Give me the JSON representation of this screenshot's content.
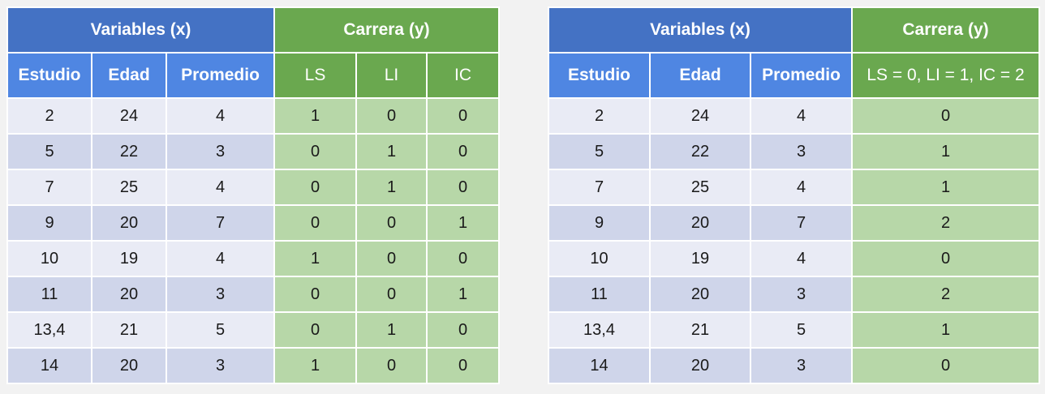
{
  "left_table": {
    "group_x": "Variables (x)",
    "group_y": "Carrera (y)",
    "columns_x": [
      "Estudio",
      "Edad",
      "Promedio"
    ],
    "columns_y": [
      "LS",
      "LI",
      "IC"
    ],
    "rows": [
      [
        "2",
        "24",
        "4",
        "1",
        "0",
        "0"
      ],
      [
        "5",
        "22",
        "3",
        "0",
        "1",
        "0"
      ],
      [
        "7",
        "25",
        "4",
        "0",
        "1",
        "0"
      ],
      [
        "9",
        "20",
        "7",
        "0",
        "0",
        "1"
      ],
      [
        "10",
        "19",
        "4",
        "1",
        "0",
        "0"
      ],
      [
        "11",
        "20",
        "3",
        "0",
        "0",
        "1"
      ],
      [
        "13,4",
        "21",
        "5",
        "0",
        "1",
        "0"
      ],
      [
        "14",
        "20",
        "3",
        "1",
        "0",
        "0"
      ]
    ]
  },
  "right_table": {
    "group_x": "Variables (x)",
    "group_y": "Carrera (y)",
    "columns_x": [
      "Estudio",
      "Edad",
      "Promedio"
    ],
    "columns_y": [
      "LS = 0, LI = 1, IC = 2"
    ],
    "rows": [
      [
        "2",
        "24",
        "4",
        "0"
      ],
      [
        "5",
        "22",
        "3",
        "1"
      ],
      [
        "7",
        "25",
        "4",
        "1"
      ],
      [
        "9",
        "20",
        "7",
        "2"
      ],
      [
        "10",
        "19",
        "4",
        "0"
      ],
      [
        "11",
        "20",
        "3",
        "2"
      ],
      [
        "13,4",
        "21",
        "5",
        "1"
      ],
      [
        "14",
        "20",
        "3",
        "0"
      ]
    ]
  },
  "colors": {
    "header_blue": "#4472c4",
    "header_green": "#6aa84f",
    "subheader_blue": "#4f86e2",
    "row_light": "#e9ebf5",
    "row_dark": "#cfd5ea",
    "cell_green": "#b7d7a8"
  }
}
